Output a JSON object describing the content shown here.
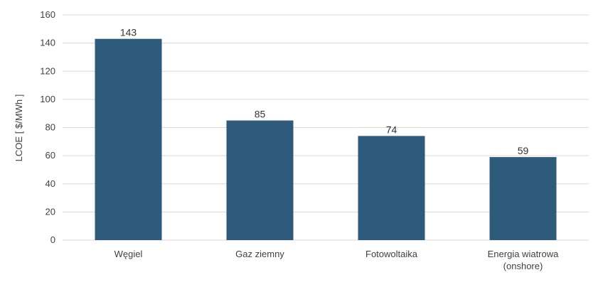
{
  "chart_data": {
    "type": "bar",
    "categories": [
      "Węgiel",
      "Gaz ziemny",
      "Fotowoltaika",
      "Energia wiatrowa\n(onshore)"
    ],
    "values": [
      143,
      85,
      74,
      59
    ],
    "ylabel": "LCOE  [ $/MWh ]",
    "xlabel": "",
    "ylim": [
      0,
      160
    ],
    "yticks": [
      0,
      20,
      40,
      60,
      80,
      100,
      120,
      140,
      160
    ],
    "grid": true,
    "legend": "none",
    "data_labels": true
  },
  "colors": {
    "bar": "#2e5b7c",
    "grid": "#d9d9d9",
    "text": "#404040"
  }
}
